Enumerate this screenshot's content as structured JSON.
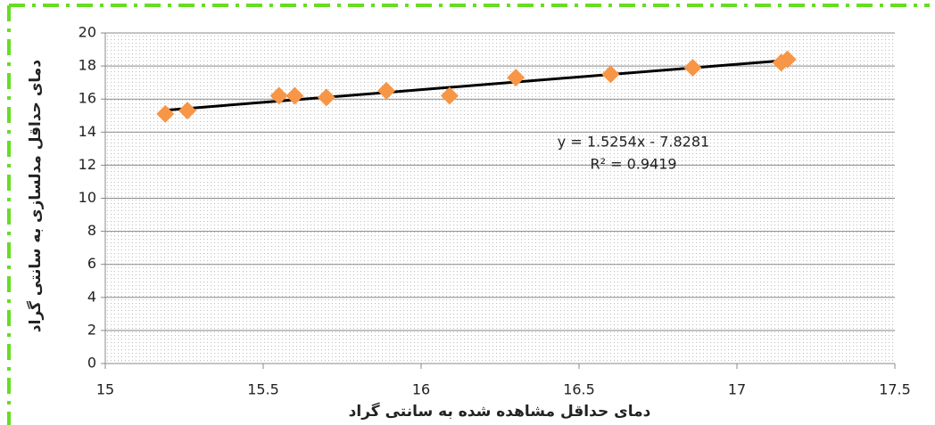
{
  "chart_data": {
    "type": "scatter",
    "x_label": "دمای حداقل مشاهده شده به سانتی گراد",
    "y_label": "دمای حداقل مدلسازی به سانتی گراد",
    "x": [
      15.19,
      15.26,
      15.55,
      15.6,
      15.7,
      15.89,
      16.09,
      16.3,
      16.6,
      16.86,
      17.14,
      17.16
    ],
    "series": [
      {
        "name": "series",
        "color": "#f79646",
        "values": [
          15.1,
          15.3,
          16.2,
          16.2,
          16.1,
          16.5,
          16.2,
          17.3,
          17.5,
          17.9,
          18.2,
          18.4
        ]
      }
    ],
    "trendline": true,
    "annotations": [
      "y = 1.5254x - 7.8281",
      "R² = 0.9419"
    ],
    "xlim": [
      15,
      17.5
    ],
    "xticks": [
      15,
      15.5,
      16,
      16.5,
      17,
      17.5
    ],
    "ylim": [
      0,
      20
    ],
    "yticks": [
      0,
      2,
      4,
      6,
      8,
      10,
      12,
      14,
      16,
      18,
      20
    ],
    "grid": true
  }
}
